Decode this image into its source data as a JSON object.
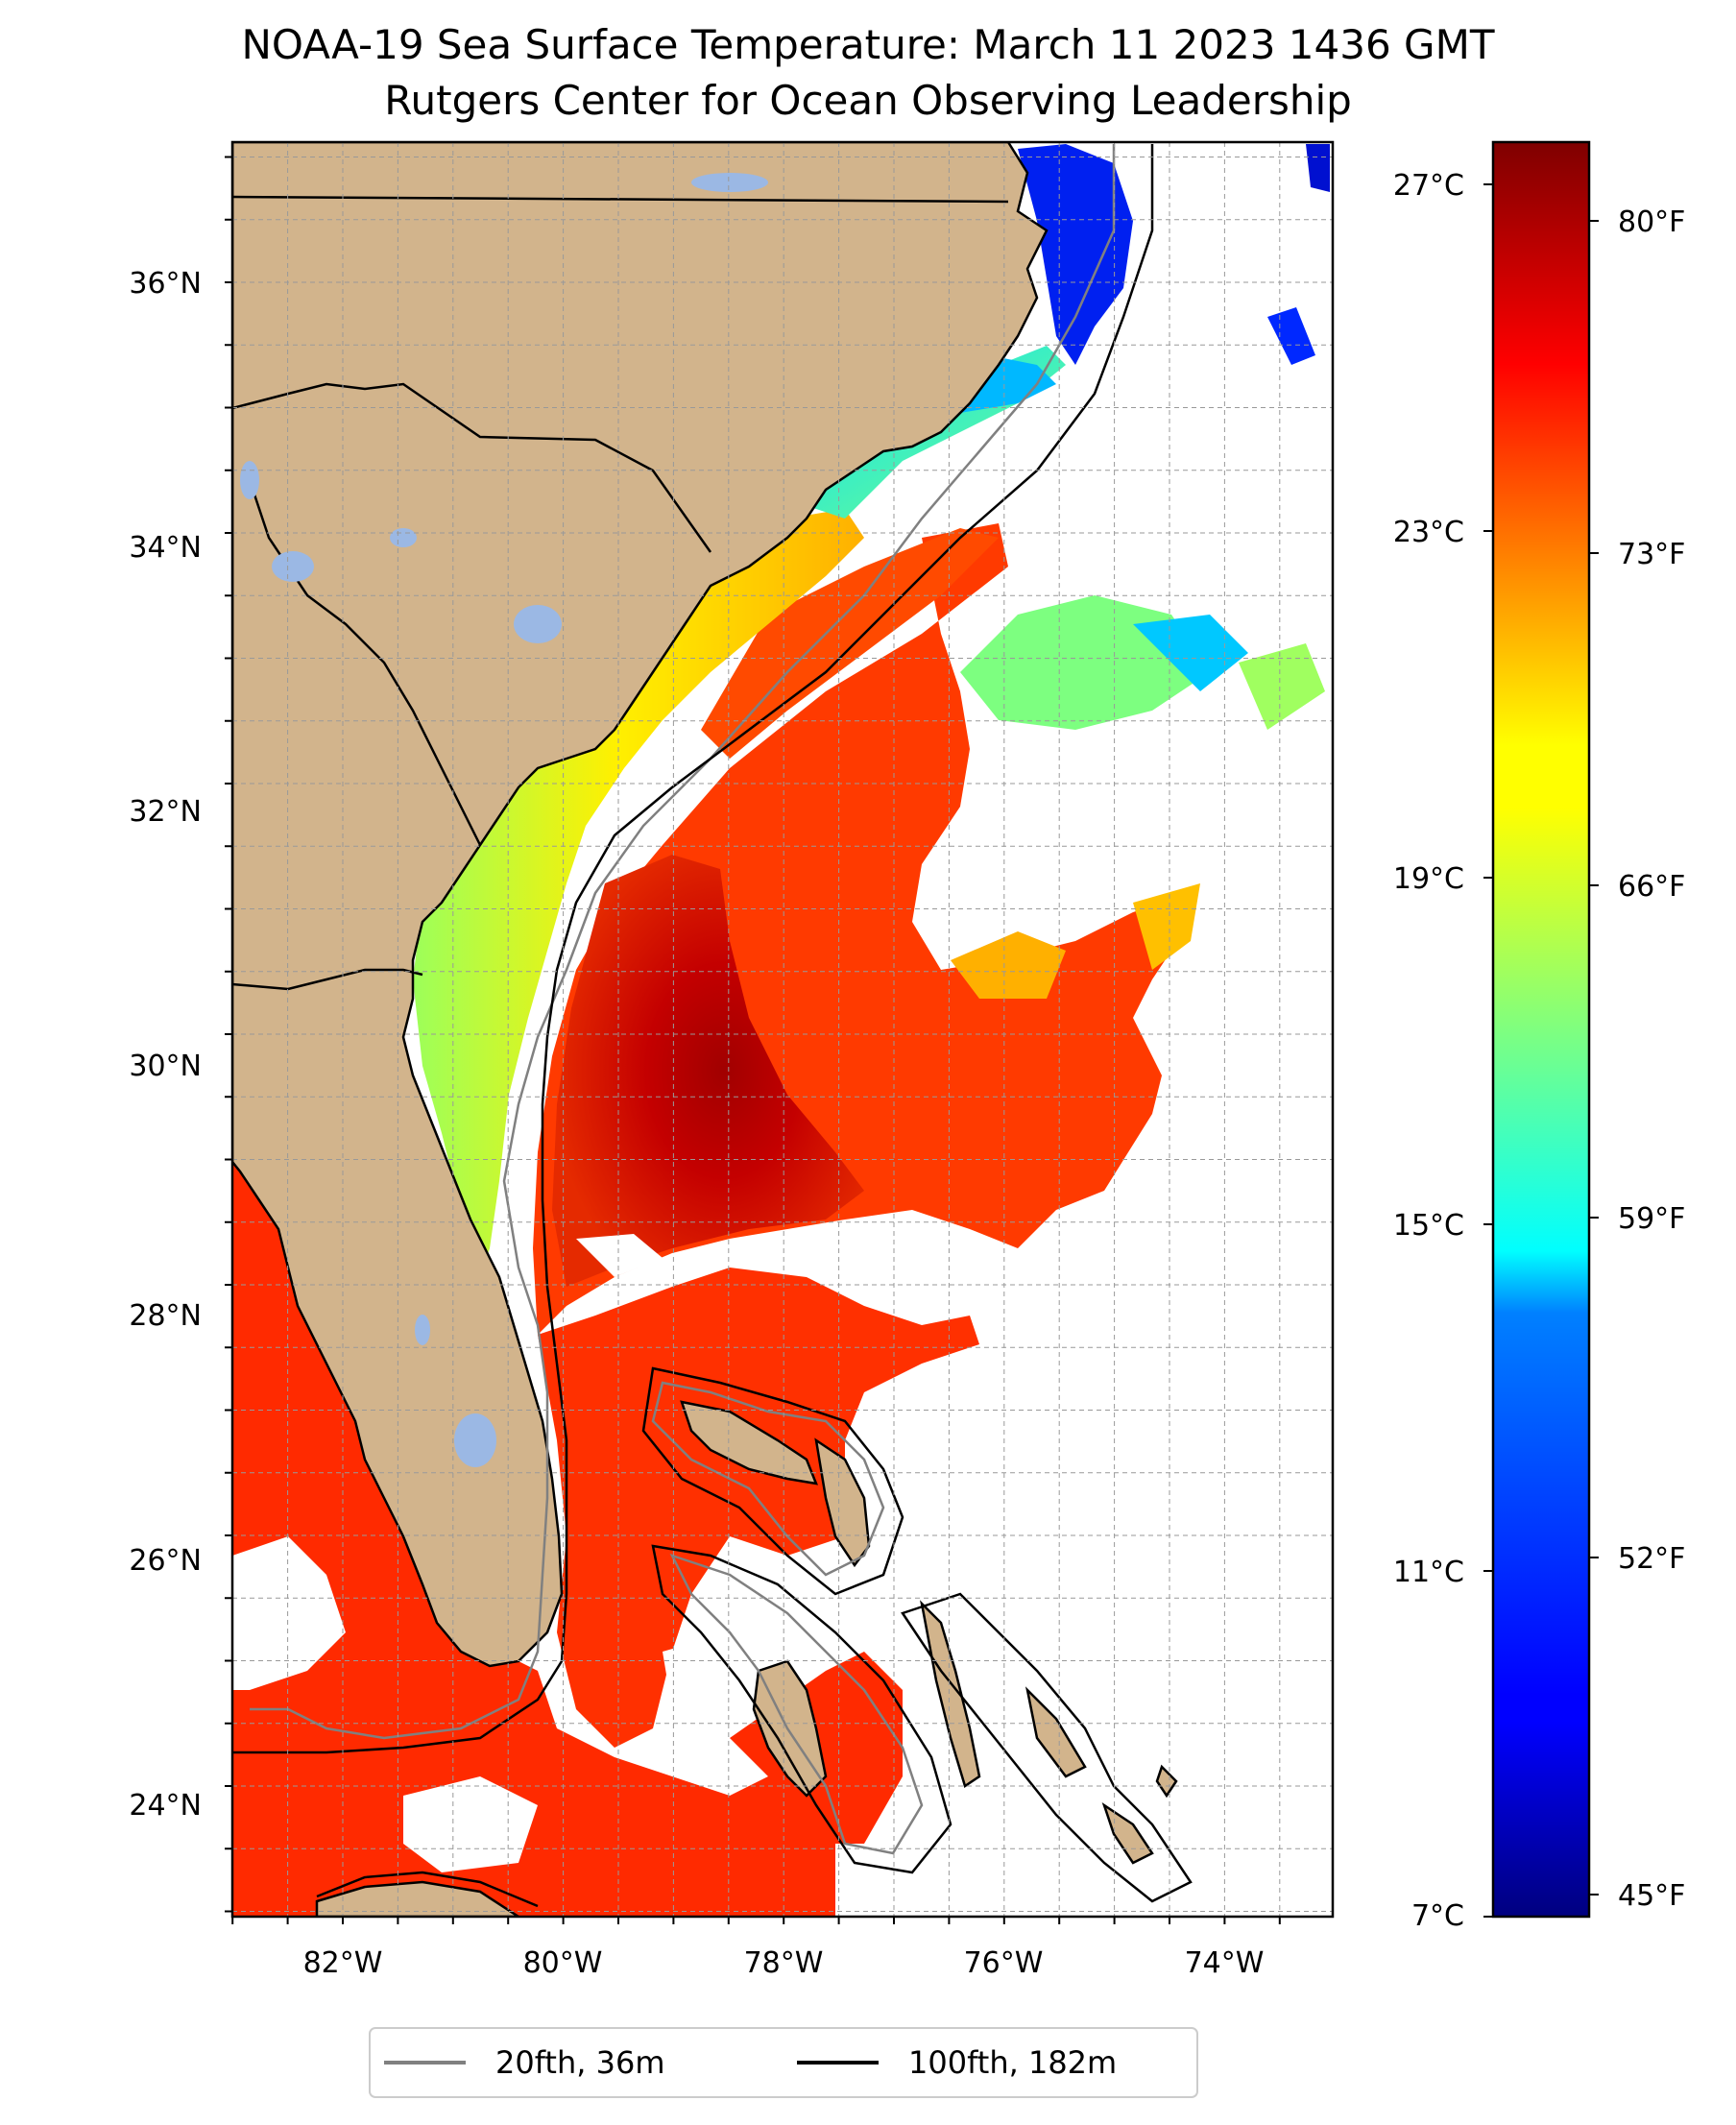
{
  "title": "NOAA-19 Sea Surface Temperature: March 11 2023 1436 GMT",
  "subtitle": "Rutgers Center for Ocean Observing Leadership",
  "map": {
    "lon_ticks": [
      "82°W",
      "80°W",
      "78°W",
      "76°W",
      "74°W"
    ],
    "lat_ticks": [
      "36°N",
      "34°N",
      "32°N",
      "30°N",
      "28°N",
      "26°N",
      "24°N"
    ],
    "gridlines": true,
    "colors": {
      "land": "#d2b48c",
      "lakes": "#9bb8e4",
      "ocean_no_data": "#ffffff",
      "isobath_20fth": "#808080",
      "isobath_100fth": "#000000"
    }
  },
  "colorbar": {
    "colormap": "jet",
    "celsius_ticks": [
      "27°C",
      "23°C",
      "19°C",
      "15°C",
      "11°C",
      "7°C"
    ],
    "fahrenheit_ticks": [
      "80°F",
      "73°F",
      "66°F",
      "59°F",
      "52°F",
      "45°F"
    ],
    "range_c": [
      7,
      27.5
    ]
  },
  "legend": {
    "placement": "bottom-center",
    "items": [
      {
        "label": "20fth, 36m",
        "color": "#808080"
      },
      {
        "label": "100fth, 182m",
        "color": "#000000"
      }
    ]
  }
}
